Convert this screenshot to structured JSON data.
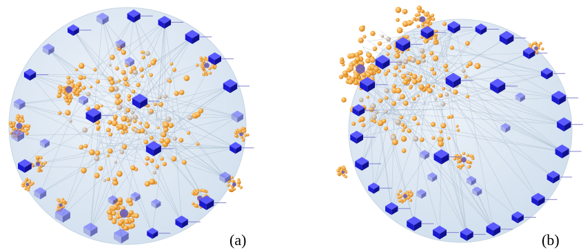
{
  "figure": {
    "panels": [
      {
        "id": "a",
        "label": "(a)"
      },
      {
        "id": "b",
        "label": "(b)"
      }
    ]
  },
  "colors": {
    "disc_fill": "#dde8f2",
    "disc_stroke": "#c6d5e3",
    "edge": "#9fb3c6",
    "cube": "#1a1ad0",
    "cube_faded": "#7f86dd",
    "orange_node": "#f2a43a",
    "gray_node": "#c9b7a6",
    "purple_node": "#6b5bb5",
    "label_text": "#000000"
  },
  "icons": {
    "hub_node": "cube-icon",
    "member_node": "sphere-icon",
    "cluster_node": "sphere-cluster-icon"
  }
}
